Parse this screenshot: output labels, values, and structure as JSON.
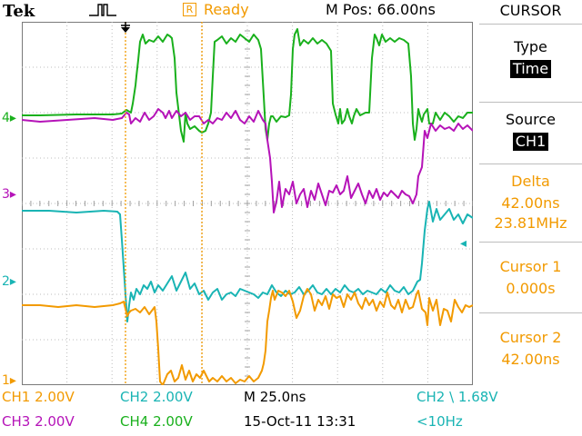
{
  "header": {
    "brand": "Tek",
    "trigger_status_letter": "R",
    "trigger_status": "Ready",
    "position": "M Pos: 66.00ns"
  },
  "menu": {
    "title": "CURSOR",
    "type_label": "Type",
    "type_value": "Time",
    "source_label": "Source",
    "source_value": "CH1",
    "delta_label": "Delta",
    "delta_time": "42.00ns",
    "delta_freq": "23.81MHz",
    "cursor1_label": "Cursor 1",
    "cursor1_value": "0.000s",
    "cursor2_label": "Cursor 2",
    "cursor2_value": "42.00ns"
  },
  "readouts": {
    "ch1": "CH1  2.00V",
    "ch2": "CH2  2.00V",
    "ch3": "CH3  2.00V",
    "ch4": "CH4  2.00V",
    "timebase": "M 25.0ns",
    "trigger": "CH2 \\ 1.68V",
    "date": "15-Oct-11 13:31",
    "freq": "<10Hz"
  },
  "channel_markers": {
    "ch1": "1",
    "ch2": "2",
    "ch3": "3",
    "ch4": "4"
  },
  "colors": {
    "ch1": "#f29a00",
    "ch2": "#19b4b4",
    "ch3": "#b513b8",
    "ch4": "#19b01c",
    "cursor": "#f29a00"
  }
}
